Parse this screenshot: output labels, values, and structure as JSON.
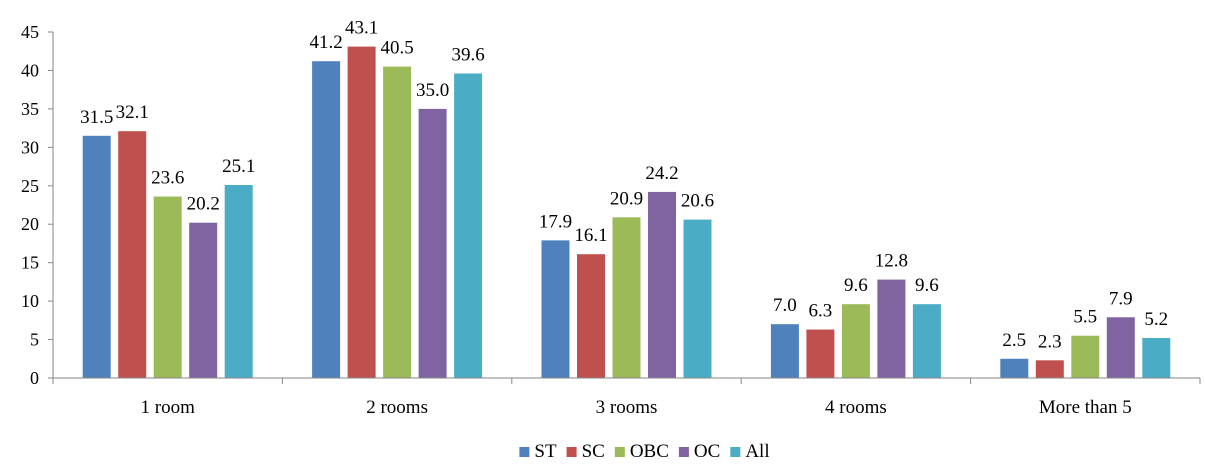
{
  "chart_data": {
    "type": "bar",
    "categories": [
      "1 room",
      "2 rooms",
      "3 rooms",
      "4 rooms",
      "More than 5"
    ],
    "series": [
      {
        "name": "ST",
        "color": "#4F81BD",
        "values": [
          31.5,
          41.2,
          17.9,
          7.0,
          2.5
        ],
        "labels": [
          "31.5",
          "41.2",
          "17.9",
          "7.0",
          "2.5"
        ]
      },
      {
        "name": "SC",
        "color": "#C0504D",
        "values": [
          32.1,
          43.1,
          16.1,
          6.3,
          2.3
        ],
        "labels": [
          "32.1",
          "43.1",
          "16.1",
          "6.3",
          "2.3"
        ]
      },
      {
        "name": "OBC",
        "color": "#9BBB59",
        "values": [
          23.6,
          40.5,
          20.9,
          9.6,
          5.5
        ],
        "labels": [
          "23.6",
          "40.5",
          "20.9",
          "9.6",
          "5.5"
        ]
      },
      {
        "name": "OC",
        "color": "#8064A2",
        "values": [
          20.2,
          35.0,
          24.2,
          12.8,
          7.9
        ],
        "labels": [
          "20.2",
          "35.0",
          "24.2",
          "12.8",
          "7.9"
        ]
      },
      {
        "name": "All",
        "color": "#4BACC6",
        "values": [
          25.1,
          39.6,
          20.6,
          9.6,
          5.2
        ],
        "labels": [
          "25.1",
          "39.6",
          "20.6",
          "9.6",
          "5.2"
        ]
      }
    ],
    "ylim": [
      0,
      45
    ],
    "yticks": [
      "0",
      "5",
      "10",
      "15",
      "20",
      "25",
      "30",
      "35",
      "40",
      "45"
    ],
    "grid": false,
    "legend_position": "bottom"
  }
}
